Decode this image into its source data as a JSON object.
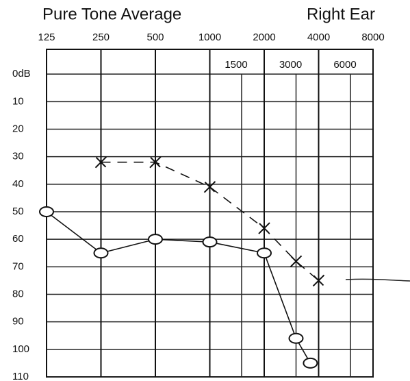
{
  "chart_data": {
    "type": "audiogram",
    "title": "Pure Tone Average",
    "subtitle": "Right Ear",
    "xscale": "log",
    "xlim": [
      125,
      8000
    ],
    "xticks": [
      125,
      250,
      500,
      1000,
      2000,
      4000,
      8000
    ],
    "xticks_minor": [
      1500,
      3000,
      6000
    ],
    "ylim": [
      -9,
      110
    ],
    "invert_y": true,
    "yticks": [
      {
        "value": 0,
        "label": "0dB"
      },
      10,
      20,
      30,
      40,
      50,
      60,
      70,
      80,
      90,
      100,
      110
    ],
    "grid": true,
    "series": [
      {
        "marker": "circle",
        "color": "#111111",
        "linestyle": "solid",
        "x": [
          125,
          250,
          500,
          1000,
          2000,
          3000,
          3600
        ],
        "values": [
          50,
          65,
          60,
          61,
          65,
          96,
          105
        ]
      },
      {
        "marker": "cross",
        "color": "#111111",
        "linestyle": "dashed",
        "x": [
          250,
          500,
          1000,
          2000,
          3000,
          4000
        ],
        "values": [
          32,
          32,
          41,
          56,
          68,
          75
        ]
      }
    ]
  }
}
